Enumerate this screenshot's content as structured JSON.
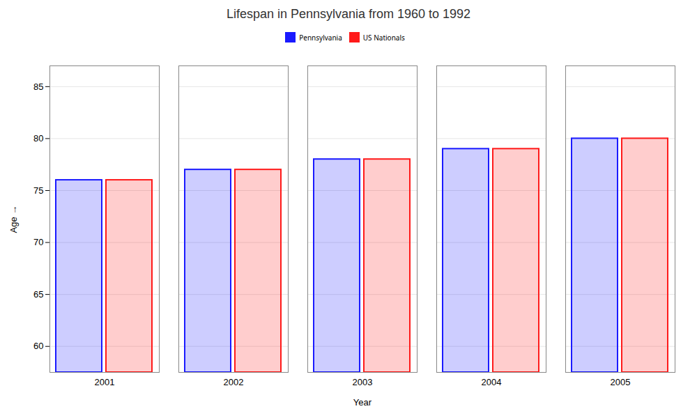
{
  "chart_data": {
    "type": "bar",
    "title": "Lifespan in Pennsylvania from 1960 to 1992",
    "xlabel": "Year",
    "ylabel": "Age",
    "categories": [
      "2001",
      "2002",
      "2003",
      "2004",
      "2005"
    ],
    "series": [
      {
        "name": "Pennsylvania",
        "color": "#1a1aff",
        "values": [
          76,
          77,
          78,
          79,
          80
        ]
      },
      {
        "name": "US Nationals",
        "color": "#ff1a1a",
        "values": [
          76,
          77,
          78,
          79,
          80
        ]
      }
    ],
    "ylim": [
      57.5,
      87
    ],
    "yticks": [
      60,
      65,
      70,
      75,
      80,
      85
    ],
    "grid": true,
    "legend": "top"
  }
}
